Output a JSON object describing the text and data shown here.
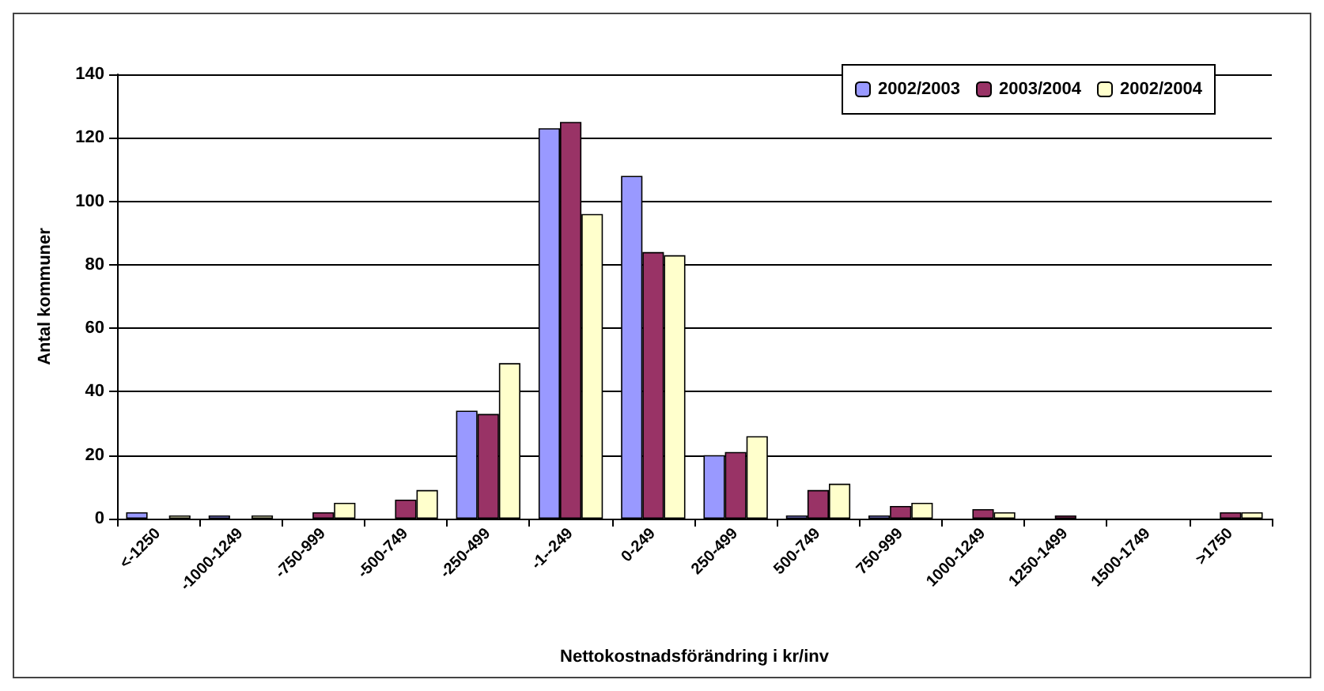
{
  "chart_data": {
    "type": "bar",
    "xlabel": "Nettokostnadsförändring i kr/inv",
    "ylabel": "Antal kommuner",
    "categories": [
      "<-1250",
      "-1000-1249",
      "-750-999",
      "-500-749",
      "-250-499",
      "-1--249",
      "0-249",
      "250-499",
      "500-749",
      "750-999",
      "1000-1249",
      "1250-1499",
      "1500-1749",
      ">1750"
    ],
    "series": [
      {
        "name": "2002/2003",
        "color": "#9999ff",
        "values": [
          2,
          1,
          0,
          0,
          34,
          123,
          108,
          20,
          1,
          1,
          0,
          0,
          0,
          0
        ]
      },
      {
        "name": "2003/2004",
        "color": "#993366",
        "values": [
          0,
          0,
          2,
          6,
          33,
          125,
          84,
          21,
          9,
          4,
          3,
          1,
          0,
          2
        ]
      },
      {
        "name": "2002/2004",
        "color": "#ffffcc",
        "values": [
          1,
          1,
          5,
          9,
          49,
          96,
          83,
          26,
          11,
          5,
          2,
          0,
          0,
          2
        ]
      }
    ],
    "ylim": [
      0,
      140
    ],
    "yticks": [
      0,
      20,
      40,
      60,
      80,
      100,
      120,
      140
    ],
    "grid": "y",
    "legend": "top right"
  }
}
